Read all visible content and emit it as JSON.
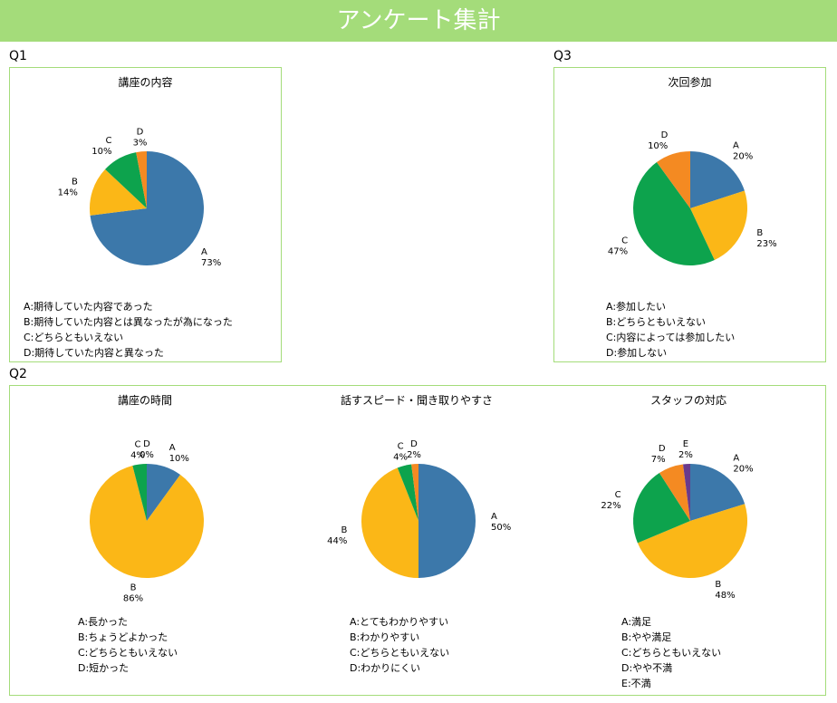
{
  "header": {
    "title": "アンケート集計"
  },
  "sections": {
    "q1_label": "Q1",
    "q2_label": "Q2",
    "q3_label": "Q3"
  },
  "chart_data": [
    {
      "id": "q1",
      "type": "pie",
      "title": "講座の内容",
      "categories": [
        "A",
        "B",
        "C",
        "D"
      ],
      "values": [
        73,
        14,
        10,
        3
      ],
      "value_labels": [
        "73%",
        "14%",
        "10%",
        "3%"
      ],
      "colors": [
        "#3c78aa",
        "#fbb717",
        "#0da34d",
        "#f48a22"
      ],
      "legend": [
        "A:期待していた内容であった",
        "B:期待していた内容とは異なったが為になった",
        "C:どちらともいえない",
        "D:期待していた内容と異なった"
      ],
      "legend_position": "bottom"
    },
    {
      "id": "q3",
      "type": "pie",
      "title": "次回参加",
      "categories": [
        "A",
        "B",
        "C",
        "D"
      ],
      "values": [
        20,
        23,
        47,
        10
      ],
      "value_labels": [
        "20%",
        "23%",
        "47%",
        "10%"
      ],
      "colors": [
        "#3c78aa",
        "#fbb717",
        "#0da34d",
        "#f48a22"
      ],
      "legend": [
        "A:参加したい",
        "B:どちらともいえない",
        "C:内容によっては参加したい",
        "D:参加しない"
      ],
      "legend_position": "bottom"
    },
    {
      "id": "q2a",
      "type": "pie",
      "title": "講座の時間",
      "categories": [
        "A",
        "B",
        "C",
        "D"
      ],
      "values": [
        10,
        86,
        4,
        0
      ],
      "value_labels": [
        "10%",
        "86%",
        "4%",
        "0%"
      ],
      "colors": [
        "#3c78aa",
        "#fbb717",
        "#0da34d",
        "#f48a22"
      ],
      "legend": [
        "A:長かった",
        "B:ちょうどよかった",
        "C:どちらともいえない",
        "D:短かった"
      ],
      "legend_position": "bottom"
    },
    {
      "id": "q2b",
      "type": "pie",
      "title": "話すスピード・聞き取りやすさ",
      "categories": [
        "A",
        "B",
        "C",
        "D"
      ],
      "values": [
        50,
        44,
        4,
        2
      ],
      "value_labels": [
        "50%",
        "44%",
        "4%",
        "2%"
      ],
      "colors": [
        "#3c78aa",
        "#fbb717",
        "#0da34d",
        "#f48a22"
      ],
      "legend": [
        "A:とてもわかりやすい",
        "B:わかりやすい",
        "C:どちらともいえない",
        "D:わかりにくい"
      ],
      "legend_position": "bottom"
    },
    {
      "id": "q2c",
      "type": "pie",
      "title": "スタッフの対応",
      "categories": [
        "A",
        "B",
        "C",
        "D",
        "E"
      ],
      "values": [
        20,
        48,
        22,
        7,
        2
      ],
      "value_labels": [
        "20%",
        "48%",
        "22%",
        "7%",
        "2%"
      ],
      "colors": [
        "#3c78aa",
        "#fbb717",
        "#0da34d",
        "#f48a22",
        "#6a3a8c"
      ],
      "legend": [
        "A:満足",
        "B:やや満足",
        "C:どちらともいえない",
        "D:やや不満",
        "E:不満"
      ],
      "legend_position": "bottom"
    }
  ]
}
